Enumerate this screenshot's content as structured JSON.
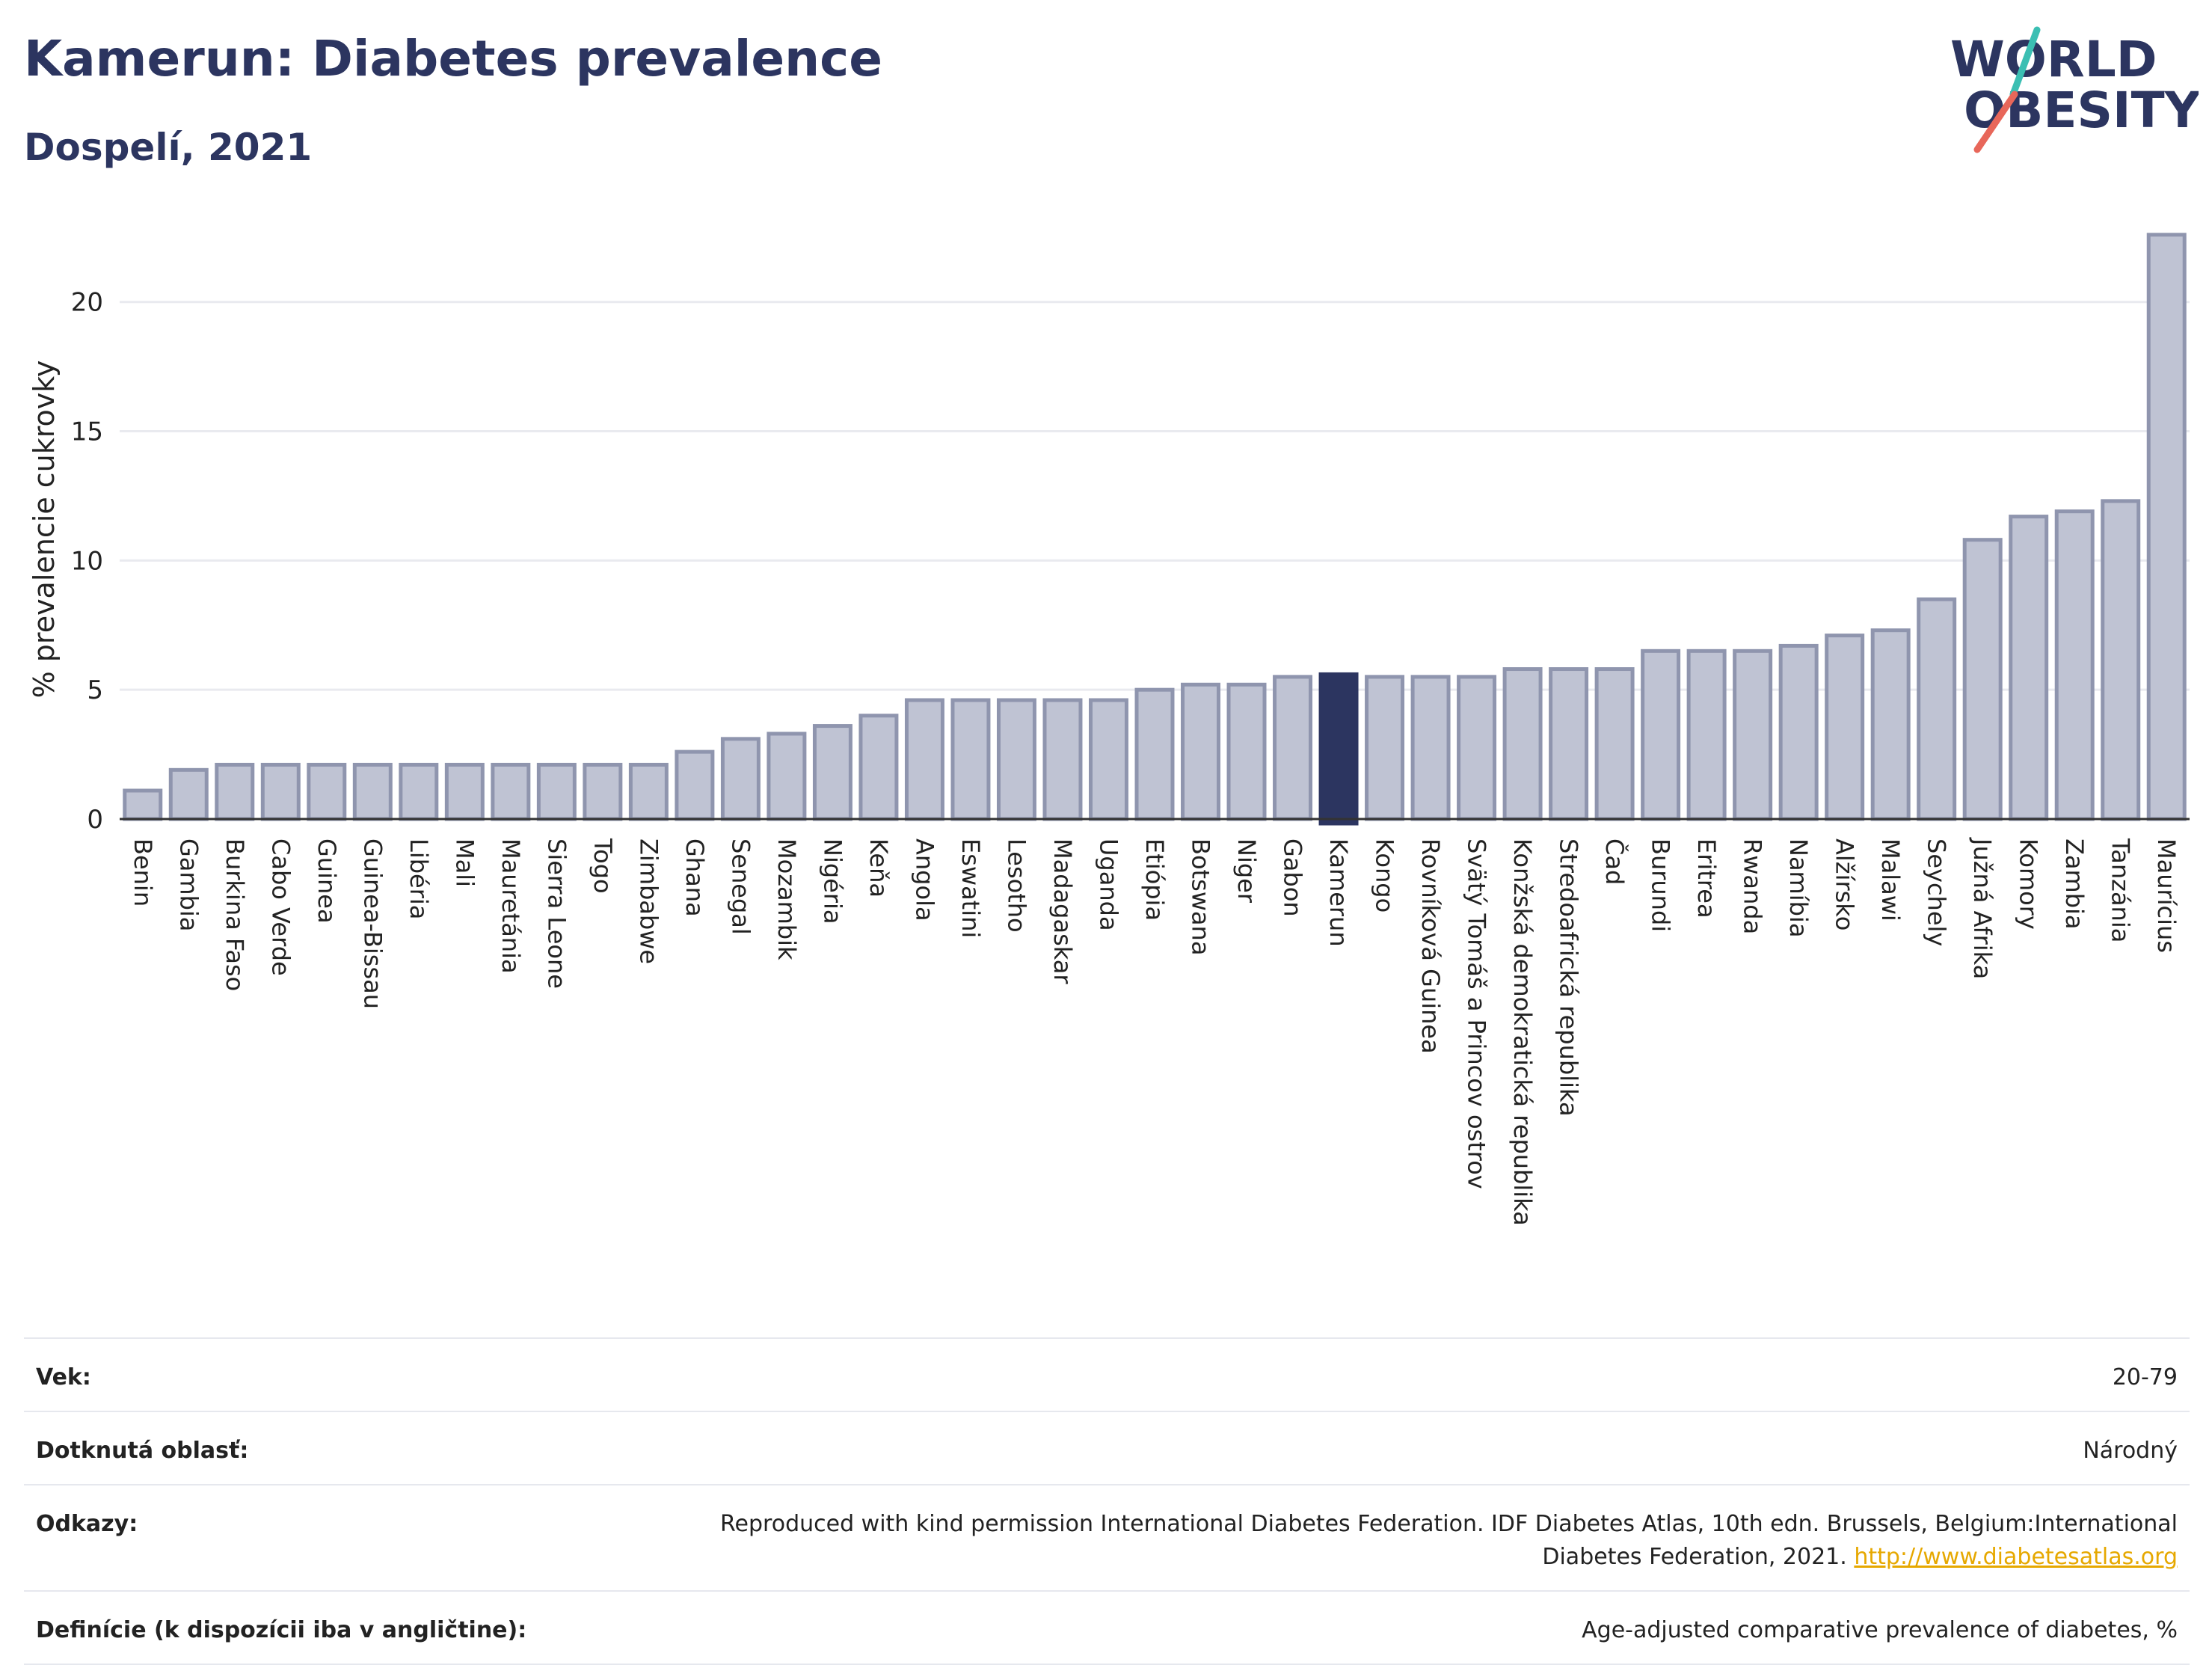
{
  "header": {
    "title": "Kamerun: Diabetes prevalence",
    "subtitle": "Dospelí, 2021"
  },
  "logo": {
    "line1": "WORLD",
    "line2": "OBESITY",
    "accent_teal": "#3bbfb3",
    "accent_red": "#e8675a"
  },
  "colors": {
    "bar": "#bfc3d3",
    "bar_border": "#8f95ae",
    "highlight": "#2c3560",
    "grid": "#e9eaef"
  },
  "chart_data": {
    "type": "bar",
    "ylabel": "% prevalencie cukrovky",
    "ylim": [
      0,
      23
    ],
    "yticks": [
      0,
      5,
      10,
      15,
      20
    ],
    "highlight": "Kamerun",
    "categories": [
      "Benin",
      "Gambia",
      "Burkina Faso",
      "Cabo Verde",
      "Guinea",
      "Guinea-Bissau",
      "Libéria",
      "Mali",
      "Mauretánia",
      "Sierra Leone",
      "Togo",
      "Zimbabwe",
      "Ghana",
      "Senegal",
      "Mozambik",
      "Nigéria",
      "Keňa",
      "Angola",
      "Eswatini",
      "Lesotho",
      "Madagaskar",
      "Uganda",
      "Etiópia",
      "Botswana",
      "Niger",
      "Gabon",
      "Kamerun",
      "Kongo",
      "Rovníková Guinea",
      "Svätý Tomáš a Princov ostrov",
      "Konžská demokratická republika",
      "Stredoafrická republika",
      "Čad",
      "Burundi",
      "Eritrea",
      "Rwanda",
      "Namíbia",
      "Alžírsko",
      "Malawi",
      "Seychely",
      "Južná Afrika",
      "Komory",
      "Zambia",
      "Tanzánia",
      "Maurícius"
    ],
    "values": [
      1.1,
      1.9,
      2.1,
      2.1,
      2.1,
      2.1,
      2.1,
      2.1,
      2.1,
      2.1,
      2.1,
      2.1,
      2.6,
      3.1,
      3.3,
      3.6,
      4.0,
      4.6,
      4.6,
      4.6,
      4.6,
      4.6,
      5.0,
      5.2,
      5.2,
      5.5,
      5.6,
      5.5,
      5.5,
      5.5,
      5.8,
      5.8,
      5.8,
      6.5,
      6.5,
      6.5,
      6.7,
      7.1,
      7.3,
      8.5,
      10.8,
      11.7,
      11.9,
      12.3,
      22.6
    ]
  },
  "meta": [
    {
      "key": "Vek:",
      "value": "20-79"
    },
    {
      "key": "Dotknutá oblasť:",
      "value": "Národný"
    },
    {
      "key": "Odkazy:",
      "value": "Reproduced with kind permission International Diabetes Federation.  IDF Diabetes Atlas, 10th edn. Brussels, Belgium:International Diabetes Federation, 2021.",
      "link": "http://www.diabetesatlas.org"
    },
    {
      "key": "Definície (k dispozícii iba v angličtine):",
      "value": "Age-adjusted comparative prevalence of diabetes, %"
    }
  ]
}
